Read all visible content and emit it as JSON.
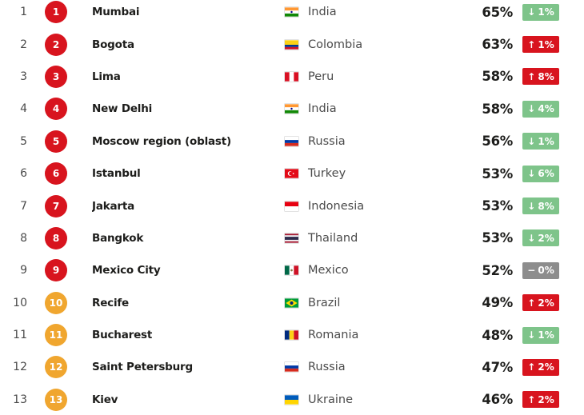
{
  "list": {
    "rows": [
      {
        "rank": "1",
        "city": "Mumbai",
        "country": "India",
        "flag": "india-flag",
        "circle": "red",
        "congestion": "65%",
        "trend": "down",
        "change": "1%"
      },
      {
        "rank": "2",
        "city": "Bogota",
        "country": "Colombia",
        "flag": "colombia-flag",
        "circle": "red",
        "congestion": "63%",
        "trend": "up",
        "change": "1%"
      },
      {
        "rank": "3",
        "city": "Lima",
        "country": "Peru",
        "flag": "peru-flag",
        "circle": "red",
        "congestion": "58%",
        "trend": "up",
        "change": "8%"
      },
      {
        "rank": "4",
        "city": "New Delhi",
        "country": "India",
        "flag": "india-flag",
        "circle": "red",
        "congestion": "58%",
        "trend": "down",
        "change": "4%"
      },
      {
        "rank": "5",
        "city": "Moscow region (oblast)",
        "country": "Russia",
        "flag": "russia-flag",
        "circle": "red",
        "congestion": "56%",
        "trend": "down",
        "change": "1%"
      },
      {
        "rank": "6",
        "city": "Istanbul",
        "country": "Turkey",
        "flag": "turkey-flag",
        "circle": "red",
        "congestion": "53%",
        "trend": "down",
        "change": "6%"
      },
      {
        "rank": "7",
        "city": "Jakarta",
        "country": "Indonesia",
        "flag": "indonesia-flag",
        "circle": "red",
        "congestion": "53%",
        "trend": "down",
        "change": "8%"
      },
      {
        "rank": "8",
        "city": "Bangkok",
        "country": "Thailand",
        "flag": "thailand-flag",
        "circle": "red",
        "congestion": "53%",
        "trend": "down",
        "change": "2%"
      },
      {
        "rank": "9",
        "city": "Mexico City",
        "country": "Mexico",
        "flag": "mexico-flag",
        "circle": "red",
        "congestion": "52%",
        "trend": "flat",
        "change": "0%"
      },
      {
        "rank": "10",
        "city": "Recife",
        "country": "Brazil",
        "flag": "brazil-flag",
        "circle": "amber",
        "congestion": "49%",
        "trend": "up",
        "change": "2%"
      },
      {
        "rank": "11",
        "city": "Bucharest",
        "country": "Romania",
        "flag": "romania-flag",
        "circle": "amber",
        "congestion": "48%",
        "trend": "down",
        "change": "1%"
      },
      {
        "rank": "12",
        "city": "Saint Petersburg",
        "country": "Russia",
        "flag": "russia-flag",
        "circle": "amber",
        "congestion": "47%",
        "trend": "up",
        "change": "2%"
      },
      {
        "rank": "13",
        "city": "Kiev",
        "country": "Ukraine",
        "flag": "ukraine-flag",
        "circle": "amber",
        "congestion": "46%",
        "trend": "up",
        "change": "2%"
      }
    ]
  },
  "icons": {
    "up": "↑",
    "down": "↓",
    "flat": "−"
  },
  "colors": {
    "rank_circle_red": "#d8141e",
    "rank_circle_amber": "#f0a62f",
    "badge_up_red": "#d8141e",
    "badge_down_green": "#7ec48a",
    "badge_flat_gray": "#8d8d8d",
    "text_dark": "#1d1d1b",
    "text_secondary": "#4b4b4b"
  }
}
